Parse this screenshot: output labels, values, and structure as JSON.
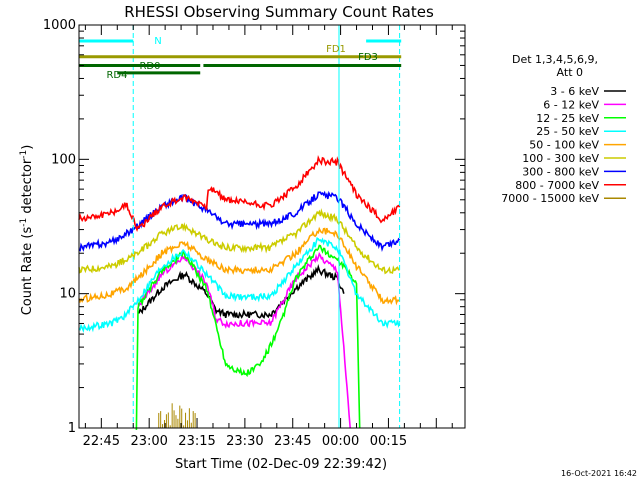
{
  "chart_data": {
    "type": "line",
    "title": "RHESSI Observing Summary Count Rates",
    "xlabel": "Start Time (02-Dec-09 22:39:42)",
    "ylabel_main": "Count Rate (s",
    "ylabel_sup1": "-1",
    "ylabel_mid": " detector",
    "ylabel_sup2": "-1",
    "ylabel_end": ")",
    "y_scale": "log",
    "ylim": [
      1,
      1000
    ],
    "y_ticks": [
      {
        "value": 1,
        "label": "1"
      },
      {
        "value": 10,
        "label": "10"
      },
      {
        "value": 100,
        "label": "100"
      },
      {
        "value": 1000,
        "label": "1000"
      }
    ],
    "x_range_minutes": [
      -20,
      101
    ],
    "x_ticks": [
      {
        "min": -13,
        "label": "22:45"
      },
      {
        "min": 2,
        "label": "23:00"
      },
      {
        "min": 17,
        "label": "23:15"
      },
      {
        "min": 32,
        "label": "23:30"
      },
      {
        "min": 47,
        "label": "23:45"
      },
      {
        "min": 62,
        "label": "00:00"
      },
      {
        "min": 77,
        "label": "00:15"
      }
    ],
    "legend_header": [
      "Det 1,3,4,5,6,9,",
      "Att 0"
    ],
    "legend_placement": "right",
    "series": [
      {
        "name": "3 - 6 keV",
        "color": "#000000",
        "x": [
          -1.5,
          6,
          13,
          20,
          23,
          26,
          40,
          48,
          55,
          61,
          63
        ],
        "y": [
          7,
          11,
          14,
          10,
          7.5,
          7,
          7,
          11,
          15,
          13,
          10
        ]
      },
      {
        "name": "6 - 12 keV",
        "color": "#ff00ff",
        "x": [
          -1.5,
          6,
          13,
          20,
          23,
          26,
          40,
          48,
          55,
          61,
          65
        ],
        "y": [
          8,
          14,
          19,
          12,
          6.5,
          6,
          6,
          13,
          19,
          15,
          1
        ]
      },
      {
        "name": "12 - 25 keV",
        "color": "#00ff00",
        "x": [
          -2,
          -1.5,
          6,
          13,
          20,
          26,
          32,
          37,
          42,
          48,
          55,
          61,
          67,
          68
        ],
        "y": [
          1,
          8,
          15,
          20,
          11,
          3,
          2.5,
          3,
          5,
          13,
          22,
          18,
          12,
          1
        ]
      },
      {
        "name": "25 - 50 keV",
        "color": "#00ffff",
        "x": [
          -20,
          -10,
          -5,
          -1.5,
          6,
          13,
          20,
          26,
          40,
          48,
          55,
          61,
          67,
          75,
          80.5
        ],
        "y": [
          5.5,
          6,
          7,
          9,
          16,
          21,
          14,
          9.5,
          9.5,
          16,
          25,
          22,
          10,
          6,
          6
        ]
      },
      {
        "name": "50 - 100 keV",
        "color": "#ffa500",
        "x": [
          -20,
          -10,
          -5,
          -1.5,
          6,
          13,
          20,
          26,
          40,
          48,
          55,
          61,
          67,
          75,
          80.5
        ],
        "y": [
          9,
          10,
          11,
          13,
          20,
          24,
          18,
          15,
          15,
          20,
          30,
          28,
          16,
          9,
          9
        ]
      },
      {
        "name": "100 - 300 keV",
        "color": "#cccc00",
        "x": [
          -20,
          -10,
          -5,
          -1.5,
          6,
          13,
          20,
          26,
          40,
          48,
          55,
          61,
          67,
          75,
          80.5
        ],
        "y": [
          15,
          16,
          18,
          20,
          28,
          32,
          25,
          22,
          22,
          28,
          40,
          36,
          22,
          15,
          15
        ]
      },
      {
        "name": "300 - 800 keV",
        "color": "#0000ff",
        "x": [
          -20,
          -10,
          -5,
          -1.5,
          6,
          13,
          20,
          26,
          40,
          48,
          55,
          61,
          67,
          75,
          80.5
        ],
        "y": [
          22,
          24,
          28,
          32,
          45,
          52,
          42,
          33,
          33,
          40,
          55,
          52,
          33,
          22,
          25
        ]
      },
      {
        "name": "800 - 7000 keV",
        "color": "#ff0000",
        "x": [
          -20,
          -10,
          -5,
          -1.5,
          6,
          13,
          20,
          20.5,
          26,
          40,
          48,
          55,
          61,
          67,
          75,
          80.5
        ],
        "y": [
          36,
          40,
          46,
          30,
          45,
          52,
          45,
          62,
          50,
          45,
          62,
          98,
          95,
          55,
          35,
          44
        ]
      },
      {
        "name": "7000 - 15000 keV",
        "color": "#aa8800",
        "x": [
          5,
          8,
          11,
          14
        ],
        "y": [
          1,
          1,
          1,
          1
        ]
      }
    ],
    "segments": [
      {
        "label": "N",
        "color": "#00ffff",
        "x_start": -20,
        "x_end": -3,
        "y": 760
      },
      {
        "label": "",
        "color": "#00ffff",
        "x_start": 70,
        "x_end": 81,
        "y": 760
      },
      {
        "label": "FD1",
        "color": "#999900",
        "x_start": -20,
        "x_end": 81,
        "y": 580
      },
      {
        "label": "FD3",
        "color": "#006600",
        "x_start": 19,
        "x_end": 81,
        "y": 500
      },
      {
        "label": "RD0",
        "color": "#006600",
        "x_start": -20,
        "x_end": 18,
        "y": 500
      },
      {
        "label": "RD4",
        "color": "#006600",
        "x_start": -8,
        "x_end": 18,
        "y": 440
      }
    ],
    "vlines": [
      {
        "x": -20,
        "style": "solid",
        "color": "#00ffff"
      },
      {
        "x": -3,
        "style": "dashed",
        "color": "#00ffff"
      },
      {
        "x": 61.5,
        "style": "solid",
        "color": "#00ffff"
      },
      {
        "x": 80.5,
        "style": "dashed",
        "color": "#00ffff"
      }
    ],
    "timestamp": "16-Oct-2021 16:42"
  }
}
